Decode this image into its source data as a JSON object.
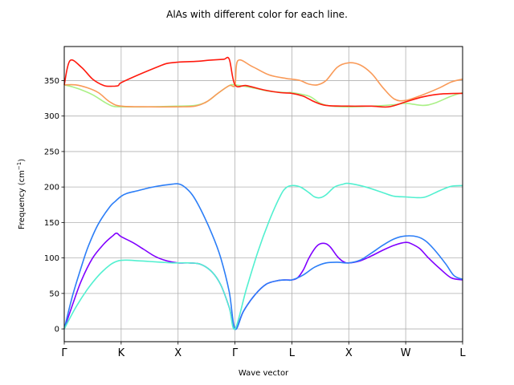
{
  "chart_data": {
    "type": "line",
    "title": "AlAs with different color for each line.",
    "xlabel": "Wave vector",
    "ylabel": "Frequency (cm",
    "ylabel_sup": "−1",
    "ylabel_close": ")",
    "xlim": [
      0,
      7
    ],
    "ylim": [
      -18,
      398
    ],
    "yticks": [
      0,
      50,
      100,
      150,
      200,
      250,
      300,
      350
    ],
    "xticks": [
      {
        "x": 0,
        "label": "Γ"
      },
      {
        "x": 1,
        "label": "K"
      },
      {
        "x": 2,
        "label": "X"
      },
      {
        "x": 3,
        "label": "Γ"
      },
      {
        "x": 4,
        "label": "L"
      },
      {
        "x": 5,
        "label": "X"
      },
      {
        "x": 6,
        "label": "W"
      },
      {
        "x": 7,
        "label": "L"
      }
    ],
    "grid": true,
    "series": [
      {
        "color": "#8000ff",
        "points": [
          [
            0,
            0
          ],
          [
            0.15,
            35
          ],
          [
            0.3,
            68
          ],
          [
            0.5,
            100
          ],
          [
            0.7,
            120
          ],
          [
            0.85,
            131
          ],
          [
            0.92,
            135
          ],
          [
            1,
            130
          ],
          [
            1.2,
            122
          ],
          [
            1.4,
            112
          ],
          [
            1.6,
            102
          ],
          [
            1.8,
            96
          ],
          [
            2,
            93
          ],
          [
            2.2,
            93
          ],
          [
            2.4,
            91
          ],
          [
            2.6,
            80
          ],
          [
            2.75,
            62
          ],
          [
            2.9,
            30
          ],
          [
            3,
            0
          ],
          [
            3.15,
            25
          ],
          [
            3.35,
            48
          ],
          [
            3.55,
            63
          ],
          [
            3.75,
            68
          ],
          [
            3.9,
            69
          ],
          [
            4,
            69
          ],
          [
            4.1,
            72
          ],
          [
            4.2,
            83
          ],
          [
            4.3,
            100
          ],
          [
            4.42,
            115
          ],
          [
            4.5,
            120
          ],
          [
            4.6,
            120
          ],
          [
            4.68,
            115
          ],
          [
            4.8,
            102
          ],
          [
            4.9,
            95
          ],
          [
            5,
            93
          ],
          [
            5.2,
            96
          ],
          [
            5.4,
            103
          ],
          [
            5.6,
            111
          ],
          [
            5.8,
            118
          ],
          [
            6,
            122
          ],
          [
            6.1,
            120
          ],
          [
            6.25,
            113
          ],
          [
            6.4,
            100
          ],
          [
            6.6,
            85
          ],
          [
            6.8,
            72
          ],
          [
            7,
            69
          ]
        ]
      },
      {
        "color": "#2c7ef7",
        "points": [
          [
            0,
            0
          ],
          [
            0.15,
            48
          ],
          [
            0.35,
            100
          ],
          [
            0.45,
            122
          ],
          [
            0.6,
            148
          ],
          [
            0.8,
            172
          ],
          [
            0.9,
            180
          ],
          [
            1,
            187
          ],
          [
            1.1,
            191
          ],
          [
            1.3,
            195
          ],
          [
            1.5,
            199
          ],
          [
            1.7,
            202
          ],
          [
            1.9,
            204
          ],
          [
            2,
            204.5
          ],
          [
            2.1,
            201
          ],
          [
            2.25,
            189
          ],
          [
            2.4,
            168
          ],
          [
            2.6,
            133
          ],
          [
            2.75,
            100
          ],
          [
            2.9,
            52
          ],
          [
            3,
            0
          ],
          [
            3.15,
            25
          ],
          [
            3.35,
            48
          ],
          [
            3.55,
            63
          ],
          [
            3.75,
            68
          ],
          [
            3.9,
            69
          ],
          [
            4,
            69
          ],
          [
            4.2,
            76
          ],
          [
            4.4,
            87
          ],
          [
            4.6,
            93
          ],
          [
            4.8,
            94
          ],
          [
            5,
            93
          ],
          [
            5.2,
            97
          ],
          [
            5.4,
            107
          ],
          [
            5.6,
            118
          ],
          [
            5.8,
            127
          ],
          [
            6,
            131
          ],
          [
            6.2,
            130
          ],
          [
            6.35,
            124
          ],
          [
            6.5,
            112
          ],
          [
            6.7,
            92
          ],
          [
            6.85,
            75
          ],
          [
            7,
            70
          ]
        ]
      },
      {
        "color": "#52f0d0",
        "points": [
          [
            0,
            0
          ],
          [
            0.2,
            30
          ],
          [
            0.4,
            55
          ],
          [
            0.6,
            75
          ],
          [
            0.8,
            90
          ],
          [
            0.95,
            96
          ],
          [
            1.1,
            97
          ],
          [
            1.3,
            96
          ],
          [
            1.5,
            95
          ],
          [
            1.7,
            94
          ],
          [
            1.9,
            93
          ],
          [
            2,
            93
          ],
          [
            2.2,
            93
          ],
          [
            2.4,
            91
          ],
          [
            2.6,
            80
          ],
          [
            2.75,
            62
          ],
          [
            2.9,
            30
          ],
          [
            3,
            0
          ],
          [
            3.2,
            56
          ],
          [
            3.4,
            108
          ],
          [
            3.6,
            152
          ],
          [
            3.8,
            188
          ],
          [
            3.9,
            199
          ],
          [
            4,
            202
          ],
          [
            4.15,
            200
          ],
          [
            4.3,
            192
          ],
          [
            4.4,
            186
          ],
          [
            4.5,
            185
          ],
          [
            4.6,
            189
          ],
          [
            4.75,
            200
          ],
          [
            4.9,
            204
          ],
          [
            5,
            205
          ],
          [
            5.3,
            200
          ],
          [
            5.6,
            192
          ],
          [
            5.8,
            187
          ],
          [
            6,
            186
          ],
          [
            6.2,
            185
          ],
          [
            6.35,
            186
          ],
          [
            6.6,
            195
          ],
          [
            6.8,
            201
          ],
          [
            7,
            202
          ]
        ]
      },
      {
        "color": "#aaf086",
        "points": [
          [
            0,
            344
          ],
          [
            0.15,
            341
          ],
          [
            0.3,
            337
          ],
          [
            0.5,
            330
          ],
          [
            0.7,
            320
          ],
          [
            0.85,
            314
          ],
          [
            1,
            313
          ],
          [
            1.5,
            313
          ],
          [
            2,
            314
          ],
          [
            2.3,
            315
          ],
          [
            2.5,
            320
          ],
          [
            2.7,
            332
          ],
          [
            2.9,
            343
          ],
          [
            3,
            344
          ],
          [
            3.3,
            340
          ],
          [
            3.6,
            335
          ],
          [
            3.9,
            333
          ],
          [
            4,
            333
          ],
          [
            4.3,
            328
          ],
          [
            4.5,
            318
          ],
          [
            4.7,
            314
          ],
          [
            5,
            313
          ],
          [
            5.4,
            314
          ],
          [
            5.8,
            316
          ],
          [
            6,
            318
          ],
          [
            6.3,
            315
          ],
          [
            6.5,
            318
          ],
          [
            6.8,
            328
          ],
          [
            7,
            333
          ]
        ]
      },
      {
        "color": "#f99a58",
        "points": [
          [
            0,
            344
          ],
          [
            0.2,
            344
          ],
          [
            0.4,
            340
          ],
          [
            0.6,
            333
          ],
          [
            0.8,
            320
          ],
          [
            1,
            314
          ],
          [
            1.5,
            313
          ],
          [
            2,
            313
          ],
          [
            2.3,
            314
          ],
          [
            2.5,
            320
          ],
          [
            2.7,
            332
          ],
          [
            2.9,
            343
          ],
          [
            3,
            344
          ],
          [
            3.05,
            378
          ],
          [
            3.3,
            370
          ],
          [
            3.6,
            358
          ],
          [
            3.9,
            353
          ],
          [
            4,
            352
          ],
          [
            4.15,
            350
          ],
          [
            4.3,
            345
          ],
          [
            4.45,
            344
          ],
          [
            4.6,
            350
          ],
          [
            4.8,
            369
          ],
          [
            5,
            375
          ],
          [
            5.2,
            372
          ],
          [
            5.4,
            360
          ],
          [
            5.6,
            340
          ],
          [
            5.8,
            324
          ],
          [
            6,
            322
          ],
          [
            6.3,
            330
          ],
          [
            6.6,
            340
          ],
          [
            6.8,
            348
          ],
          [
            7,
            352
          ]
        ]
      },
      {
        "color": "#ff1a0e",
        "points": [
          [
            0,
            344
          ],
          [
            0.1,
            378
          ],
          [
            0.3,
            369
          ],
          [
            0.5,
            352
          ],
          [
            0.7,
            343
          ],
          [
            0.85,
            342
          ],
          [
            0.95,
            343
          ],
          [
            1,
            347
          ],
          [
            1.3,
            358
          ],
          [
            1.6,
            368
          ],
          [
            1.8,
            374
          ],
          [
            2,
            376
          ],
          [
            2.3,
            377
          ],
          [
            2.6,
            379
          ],
          [
            2.8,
            380
          ],
          [
            2.9,
            380
          ],
          [
            3,
            344
          ],
          [
            3.2,
            343
          ],
          [
            3.5,
            337
          ],
          [
            3.8,
            333
          ],
          [
            4,
            332
          ],
          [
            4.2,
            328
          ],
          [
            4.4,
            320
          ],
          [
            4.6,
            315
          ],
          [
            5,
            314
          ],
          [
            5.4,
            314
          ],
          [
            5.7,
            313
          ],
          [
            6,
            320
          ],
          [
            6.3,
            327
          ],
          [
            6.6,
            331
          ],
          [
            7,
            332
          ]
        ]
      }
    ]
  }
}
